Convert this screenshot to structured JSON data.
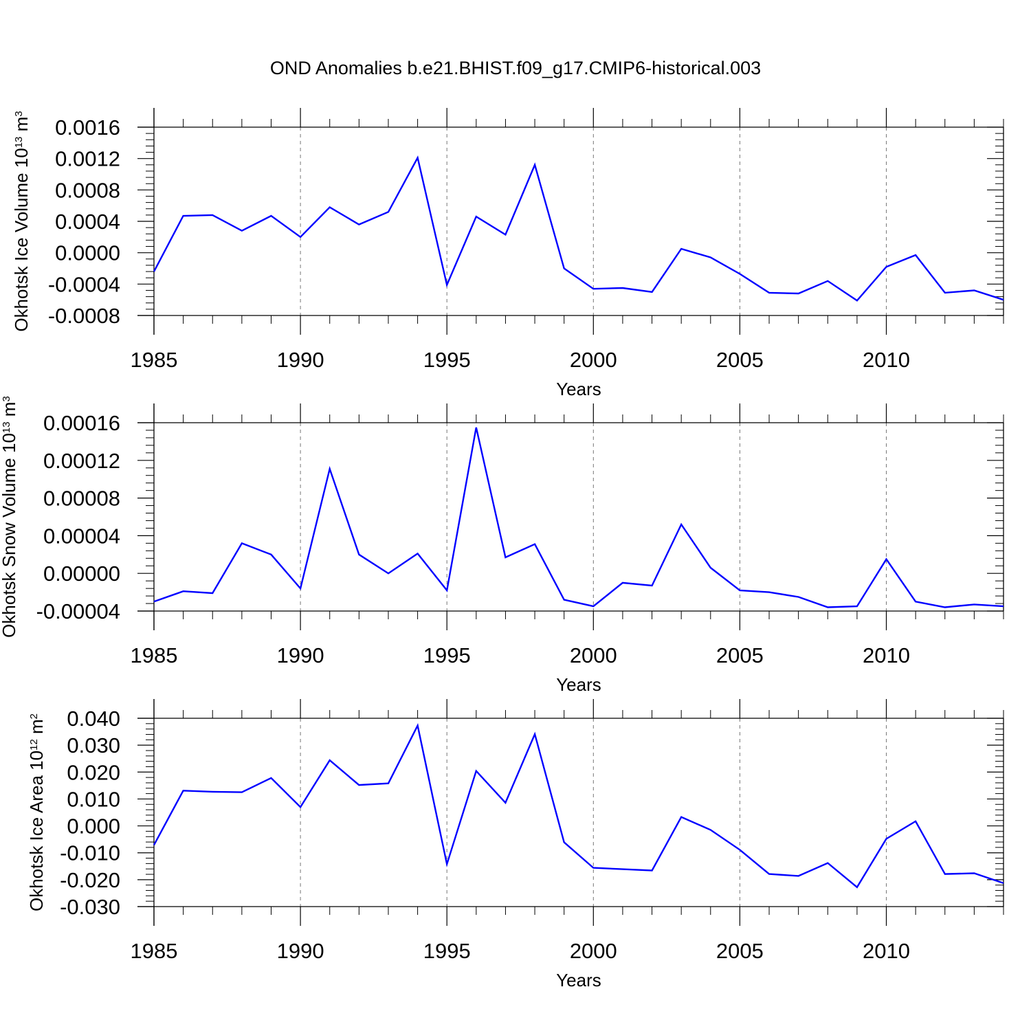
{
  "title": "OND Anomalies b.e21.BHIST.f09_g17.CMIP6-historical.003",
  "colors": {
    "line": "#0000ff",
    "axis": "#000000",
    "grid": "#777777"
  },
  "chart_data": [
    {
      "type": "line",
      "ylabel": "Okhotsk Ice Volume 10",
      "ylabel_exp": "13",
      "ylabel_unit": " m",
      "ylabel_unit_exp": "3",
      "xlabel": "Years",
      "xlim": [
        1985,
        2014
      ],
      "ylim": [
        -0.0008,
        0.0016
      ],
      "yticks": [
        -0.0008,
        -0.0004,
        0.0,
        0.0004,
        0.0008,
        0.0012,
        0.0016
      ],
      "ytick_labels": [
        "-0.0008",
        "-0.0004",
        "0.0000",
        "0.0004",
        "0.0008",
        "0.0012",
        "0.0016"
      ],
      "xticks": [
        1985,
        1990,
        1995,
        2000,
        2005,
        2010
      ],
      "xtick_labels": [
        "1985",
        "1990",
        "1995",
        "2000",
        "2005",
        "2010"
      ],
      "grid": "vertical dashed at major x ticks",
      "x": [
        1985,
        1986,
        1987,
        1988,
        1989,
        1990,
        1991,
        1992,
        1993,
        1994,
        1995,
        1996,
        1997,
        1998,
        1999,
        2000,
        2001,
        2002,
        2003,
        2004,
        2005,
        2006,
        2007,
        2008,
        2009,
        2010,
        2011,
        2012,
        2013,
        2014
      ],
      "y": [
        -0.00024,
        0.00047,
        0.00048,
        0.00028,
        0.00047,
        0.0002,
        0.00058,
        0.00036,
        0.00052,
        0.00121,
        -0.00041,
        0.00046,
        0.00023,
        0.00112,
        -0.0002,
        -0.00046,
        -0.00045,
        -0.0005,
        5e-05,
        -6e-05,
        -0.00027,
        -0.00051,
        -0.00052,
        -0.00036,
        -0.00061,
        -0.00018,
        -3e-05,
        -0.00051,
        -0.00048,
        -0.0006
      ]
    },
    {
      "type": "line",
      "ylabel": "Okhotsk Snow Volume 10",
      "ylabel_exp": "13",
      "ylabel_unit": " m",
      "ylabel_unit_exp": "3",
      "xlabel": "Years",
      "xlim": [
        1985,
        2014
      ],
      "ylim": [
        -4e-05,
        0.00016
      ],
      "yticks": [
        -4e-05,
        0.0,
        4e-05,
        8e-05,
        0.00012,
        0.00016
      ],
      "ytick_labels": [
        "-0.00004",
        "0.00000",
        "0.00004",
        "0.00008",
        "0.00012",
        "0.00016"
      ],
      "xticks": [
        1985,
        1990,
        1995,
        2000,
        2005,
        2010
      ],
      "xtick_labels": [
        "1985",
        "1990",
        "1995",
        "2000",
        "2005",
        "2010"
      ],
      "grid": "vertical dashed at major x ticks",
      "x": [
        1985,
        1986,
        1987,
        1988,
        1989,
        1990,
        1991,
        1992,
        1993,
        1994,
        1995,
        1996,
        1997,
        1998,
        1999,
        2000,
        2001,
        2002,
        2003,
        2004,
        2005,
        2006,
        2007,
        2008,
        2009,
        2010,
        2011,
        2012,
        2013,
        2014
      ],
      "y": [
        -3e-05,
        -1.9e-05,
        -2.1e-05,
        3.2e-05,
        2e-05,
        -1.6e-05,
        0.000111,
        2e-05,
        0.0,
        2.1e-05,
        -1.8e-05,
        0.000155,
        1.7e-05,
        3.1e-05,
        -2.8e-05,
        -3.5e-05,
        -1e-05,
        -1.3e-05,
        5.2e-05,
        6e-06,
        -1.8e-05,
        -2e-05,
        -2.5e-05,
        -3.6e-05,
        -3.5e-05,
        1.5e-05,
        -3e-05,
        -3.6e-05,
        -3.3e-05,
        -3.5e-05
      ]
    },
    {
      "type": "line",
      "ylabel": "Okhotsk Ice Area 10",
      "ylabel_exp": "12",
      "ylabel_unit": " m",
      "ylabel_unit_exp": "2",
      "xlabel": "Years",
      "xlim": [
        1985,
        2014
      ],
      "ylim": [
        -0.03,
        0.04
      ],
      "yticks": [
        -0.03,
        -0.02,
        -0.01,
        0.0,
        0.01,
        0.02,
        0.03,
        0.04
      ],
      "ytick_labels": [
        "-0.030",
        "-0.020",
        "-0.010",
        "0.000",
        "0.010",
        "0.020",
        "0.030",
        "0.040"
      ],
      "xticks": [
        1985,
        1990,
        1995,
        2000,
        2005,
        2010
      ],
      "xtick_labels": [
        "1985",
        "1990",
        "1995",
        "2000",
        "2005",
        "2010"
      ],
      "grid": "vertical dashed at major x ticks",
      "x": [
        1985,
        1986,
        1987,
        1988,
        1989,
        1990,
        1991,
        1992,
        1993,
        1994,
        1995,
        1996,
        1997,
        1998,
        1999,
        2000,
        2001,
        2002,
        2003,
        2004,
        2005,
        2006,
        2007,
        2008,
        2009,
        2010,
        2011,
        2012,
        2013,
        2014
      ],
      "y": [
        -0.0071,
        0.0131,
        0.0127,
        0.0125,
        0.0178,
        0.007,
        0.0244,
        0.0152,
        0.0158,
        0.0373,
        -0.0142,
        0.0204,
        0.0086,
        0.0341,
        -0.0061,
        -0.0156,
        -0.0161,
        -0.0166,
        0.0033,
        -0.0015,
        -0.0089,
        -0.0179,
        -0.0186,
        -0.0138,
        -0.0228,
        -0.0048,
        0.0017,
        -0.0179,
        -0.0176,
        -0.0213
      ]
    }
  ]
}
